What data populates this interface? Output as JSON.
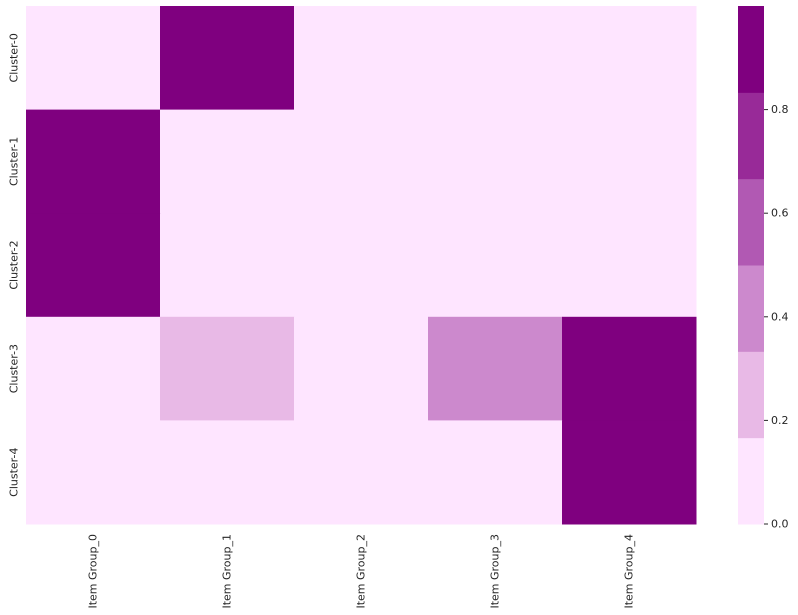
{
  "chart_data": {
    "type": "heatmap",
    "x_categories": [
      "Item Group_0",
      "Item Group_1",
      "Item Group_2",
      "Item Group_3",
      "Item Group_4"
    ],
    "y_categories": [
      "Cluster-0",
      "Cluster-1",
      "Cluster-2",
      "Cluster-3",
      "Cluster-4"
    ],
    "values": [
      [
        0.0,
        1.0,
        0.0,
        0.0,
        0.0
      ],
      [
        1.0,
        0.0,
        0.0,
        0.0,
        0.0
      ],
      [
        1.0,
        0.0,
        0.0,
        0.0,
        0.0
      ],
      [
        0.0,
        0.25,
        0.0,
        0.4,
        1.0
      ],
      [
        0.0,
        0.0,
        0.0,
        0.0,
        1.0
      ]
    ],
    "colorbar": {
      "range": [
        0.0,
        1.0
      ],
      "levels": 6,
      "ticks": [
        "0.0",
        "0.2",
        "0.4",
        "0.6",
        "0.8"
      ],
      "tick_values": [
        0.0,
        0.2,
        0.4,
        0.6,
        0.8
      ],
      "colors": [
        "#fee5ff",
        "#e8b9e6",
        "#cc89cd",
        "#b159b3",
        "#982a98",
        "#7f007f"
      ]
    },
    "title": "",
    "xlabel": "",
    "ylabel": ""
  }
}
